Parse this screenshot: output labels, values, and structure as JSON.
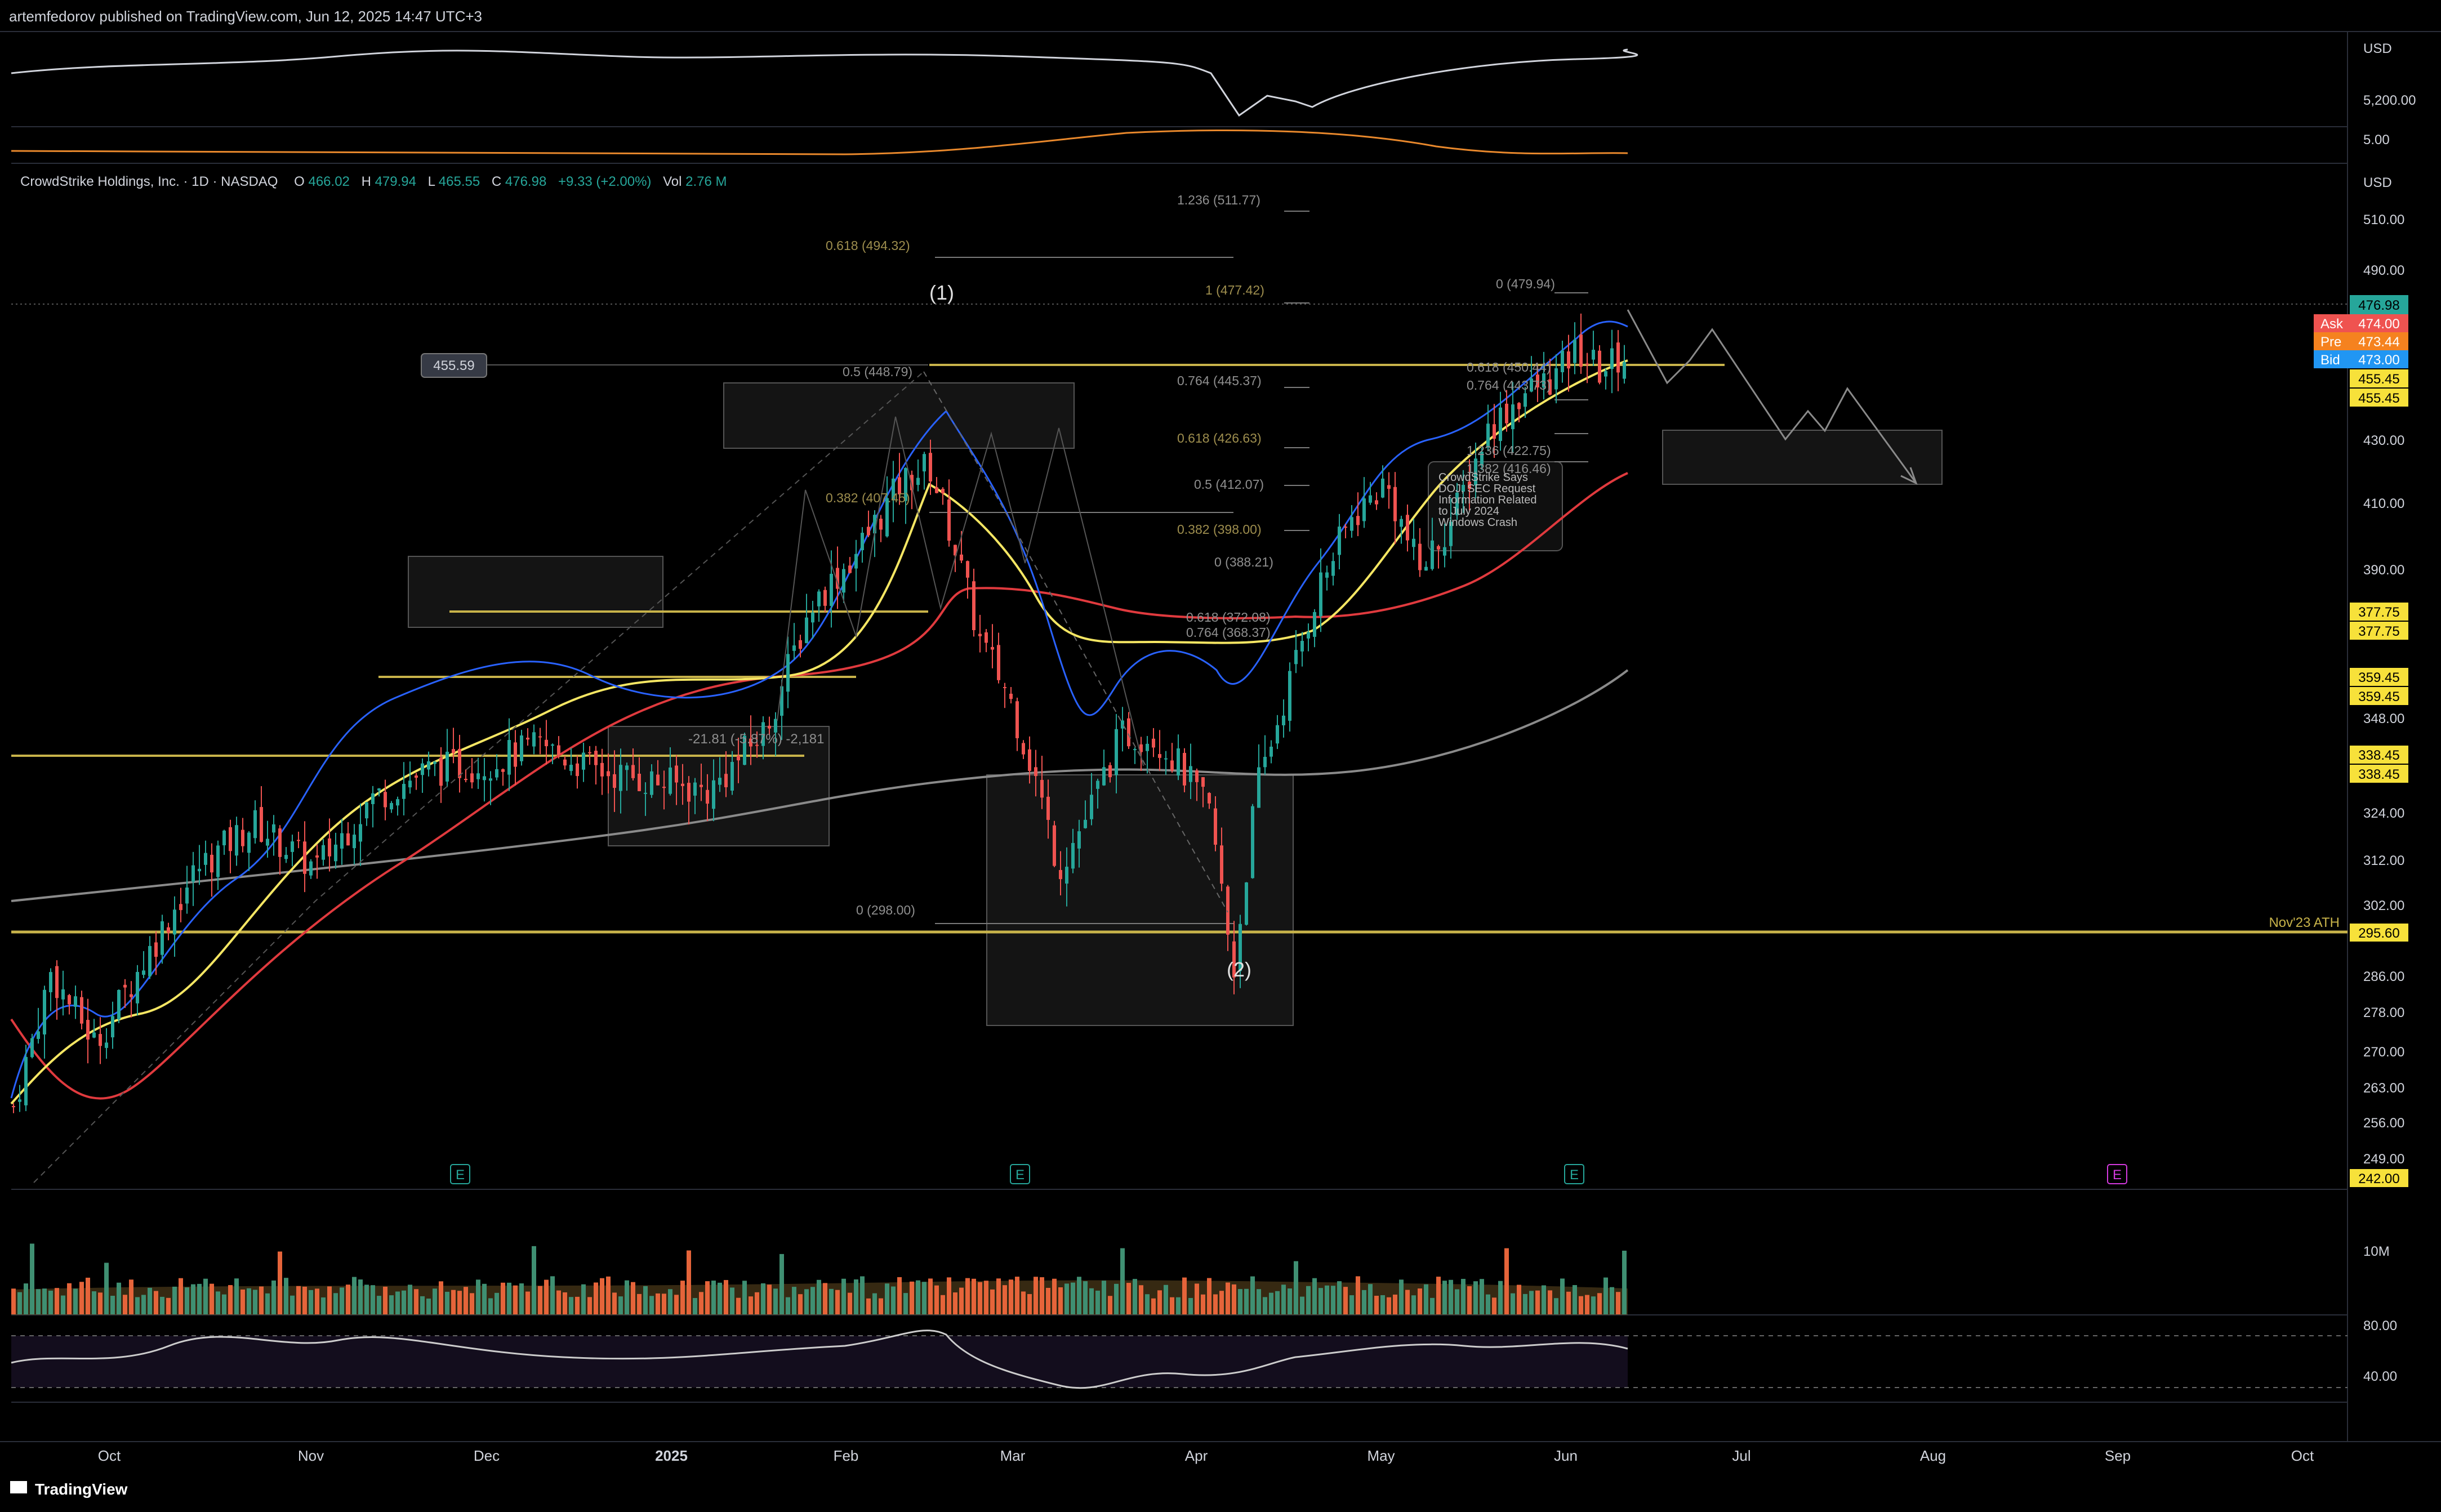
{
  "header": {
    "publisher": "artemfedorov published on TradingView.com, Jun 12, 2025 14:47 UTC+3"
  },
  "footer": {
    "brand": "TradingView"
  },
  "colors": {
    "background": "#000000",
    "up": "#26a69a",
    "down": "#ef5350",
    "ema_fast": "#2962ff",
    "ema_mid": "#f5e663",
    "ema_slow": "#e03a3e",
    "sma_long": "#8a8a8a",
    "level": "#c8b34a",
    "fib": "#a89a5a"
  },
  "ticker_header": {
    "name": "CrowdStrike Holdings, Inc. · 1D · NASDAQ",
    "o_label": "O",
    "o_value": "466.02",
    "h_label": "H",
    "h_value": "479.94",
    "l_label": "L",
    "l_value": "465.55",
    "c_label": "C",
    "c_value": "476.98",
    "change": "+9.33 (+2.00%)",
    "vol_label": "Vol",
    "vol_value": "2.76 M"
  },
  "chart_data": {
    "type": "candlestick",
    "x_ticks": [
      "Oct",
      "Nov",
      "Dec",
      "2025",
      "Feb",
      "Mar",
      "Apr",
      "May",
      "Jun",
      "Jul",
      "Aug",
      "Sep",
      "Oct"
    ],
    "top_pane": {
      "currency": "USD",
      "ticks": [
        "5,200.00",
        "5.00"
      ]
    },
    "main_pane": {
      "currency": "USD",
      "y_ticks": [
        "510.00",
        "490.00",
        "430.00",
        "410.00",
        "390.00",
        "348.00",
        "324.00",
        "312.00",
        "302.00",
        "286.00",
        "278.00",
        "270.00",
        "263.00",
        "256.00",
        "249.00"
      ],
      "ylim": [
        242,
        520
      ],
      "last_price": "476.98",
      "ask": {
        "label": "Ask",
        "value": "474.00"
      },
      "pre": {
        "label": "Pre",
        "value": "473.44"
      },
      "bid": {
        "label": "Bid",
        "value": "473.00"
      },
      "price_labels": [
        "455.45",
        "455.45",
        "377.75",
        "377.75",
        "359.45",
        "359.45",
        "338.45",
        "338.45",
        "295.60",
        "242.00"
      ],
      "hline_labels": [
        {
          "text": "Nov'23 ATH",
          "price": 295.6
        }
      ],
      "price_tag": "455.59",
      "wave_labels": [
        "(1)",
        "(2)"
      ],
      "measure_label": "-21.81 (-5.87%) -2,181",
      "fib_labels": [
        {
          "text": "1.236 (511.77)",
          "price": 511.77
        },
        {
          "text": "0.618 (494.32)",
          "price": 494.32
        },
        {
          "text": "1 (477.42)",
          "price": 477.42
        },
        {
          "text": "0.5 (448.79)",
          "price": 448.79
        },
        {
          "text": "0.764 (445.37)",
          "price": 445.37
        },
        {
          "text": "0.618 (426.63)",
          "price": 426.63
        },
        {
          "text": "0.5 (412.07)",
          "price": 412.07
        },
        {
          "text": "0.382 (407.45)",
          "price": 407.45
        },
        {
          "text": "0.382 (398.00)",
          "price": 398.0
        },
        {
          "text": "0 (388.21)",
          "price": 388.21
        },
        {
          "text": "0.618 (372.08)",
          "price": 372.08
        },
        {
          "text": "0.764 (368.37)",
          "price": 368.37
        },
        {
          "text": "0 (298.00)",
          "price": 298.0
        },
        {
          "text": "0 (479.94)",
          "price": 479.94
        },
        {
          "text": "0.618 (450.44)",
          "price": 450.44
        },
        {
          "text": "0.764 (443.73)",
          "price": 443.73
        },
        {
          "text": "1.236 (422.75)",
          "price": 422.75
        },
        {
          "text": "1.382 (416.46)",
          "price": 416.46
        }
      ],
      "news_note": [
        "CrowdStrike Says",
        "DOJ, SEC Request",
        "Information Related",
        "to July 2024",
        "Windows Crash"
      ],
      "earnings_marker": "E",
      "series": [
        {
          "name": "close",
          "dates": [
            "Oct",
            "Nov",
            "Dec",
            "2025",
            "Feb",
            "Mar",
            "Apr",
            "May",
            "Jun"
          ],
          "values": [
            280,
            300,
            350,
            365,
            440,
            330,
            300,
            420,
            477
          ]
        }
      ]
    },
    "volume_pane": {
      "ticks": [
        "10M"
      ]
    },
    "rsi_pane": {
      "ticks": [
        "80.00",
        "40.00"
      ]
    }
  }
}
